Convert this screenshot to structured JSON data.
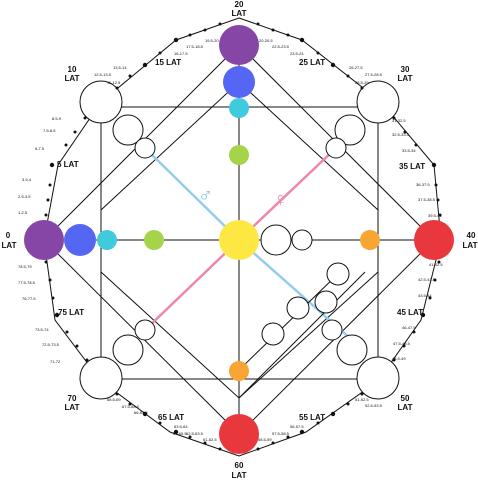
{
  "colors": {
    "purple": "#8646a6",
    "blue": "#5566f5",
    "cyan": "#3fcbdd",
    "green": "#a5d34a",
    "yellow": "#fde843",
    "orange": "#f8a533",
    "red": "#e8383d",
    "line_blue": "#93cdeb",
    "line_pink": "#ef87a6"
  },
  "labels": {
    "top": {
      "num": "20",
      "word": "LAT"
    },
    "right": {
      "num": "40",
      "word": "LAT"
    },
    "bottom": {
      "num": "60",
      "word": "LAT"
    },
    "left": {
      "num": "0",
      "word": "LAT"
    },
    "top_right": {
      "num": "30",
      "word": "LAT"
    },
    "bottom_right": {
      "num": "50",
      "word": "LAT"
    },
    "bottom_left": {
      "num": "70",
      "word": "LAT"
    },
    "top_left": {
      "num": "10",
      "word": "LAT"
    }
  },
  "mid_labels": {
    "l15": "15 LAT",
    "l25": "25 LAT",
    "l35": "35 LAT",
    "l45": "45 LAT",
    "l55": "55 LAT",
    "l65": "65 LAT",
    "l75": "75 LAT",
    "l5": "5 LAT"
  },
  "pair_labels": {
    "p_19_20": "19.5-20",
    "p_20_20_5": "20-20.5",
    "p_17_18": "17.5-18.5",
    "p_16_17": "16-17.5",
    "p_22_23": "22.5-23.5",
    "p_23_24": "23.5-24",
    "p_26_27": "26-27.5",
    "p_27_28": "27.5-28.5",
    "p_13_14": "13.5-14",
    "p_12_13": "12.5-13.5",
    "p_11_12": "11-12.5",
    "p_28_29": "28.5-29",
    "p_31_32": "31-32.5",
    "p_32_33": "32.5-33.5",
    "p_33_34": "33.5-34",
    "p_36_37": "36-37.5",
    "p_37_38": "37.5-38.5",
    "p_39_40": "39.5-40",
    "p_41_42": "41-42.5",
    "p_42_43": "42.5-43.5",
    "p_43_44": "43.5-44",
    "p_46_47": "46-47.5",
    "p_47_48": "47.5-48.5",
    "p_48_49": "48.5-49",
    "p_51_52": "51-52.5",
    "p_52_53": "52.5-53.5",
    "p_56_57": "56-57.5",
    "p_57_58": "57.5-58.5",
    "p_58_59": "58.5-59",
    "p_61_62": "61-62.5",
    "p_62_63": "62.5-63.5",
    "p_63_64": "63.5-64",
    "p_66_67": "66-67.5",
    "p_67_68": "67.5-68.5",
    "p_68_69": "68.5-69",
    "p_71_72": "71-72",
    "p_72_73": "72.5-73.5",
    "p_73_74": "73.5-74",
    "p_76_77": "76-77.5",
    "p_77_78": "77.5-78.5",
    "p_78_79": "78.5-79",
    "p_1_2": "1-2.5",
    "p_2_3": "2.5-3.5",
    "p_3_4": "3.5-4",
    "p_6_7": "6-7.5",
    "p_7_8": "7.5-8.5",
    "p_8_9": "8.5-9",
    "p_64_65": "64-65.5"
  },
  "symbols": {
    "male": "♂",
    "female": "♀"
  }
}
